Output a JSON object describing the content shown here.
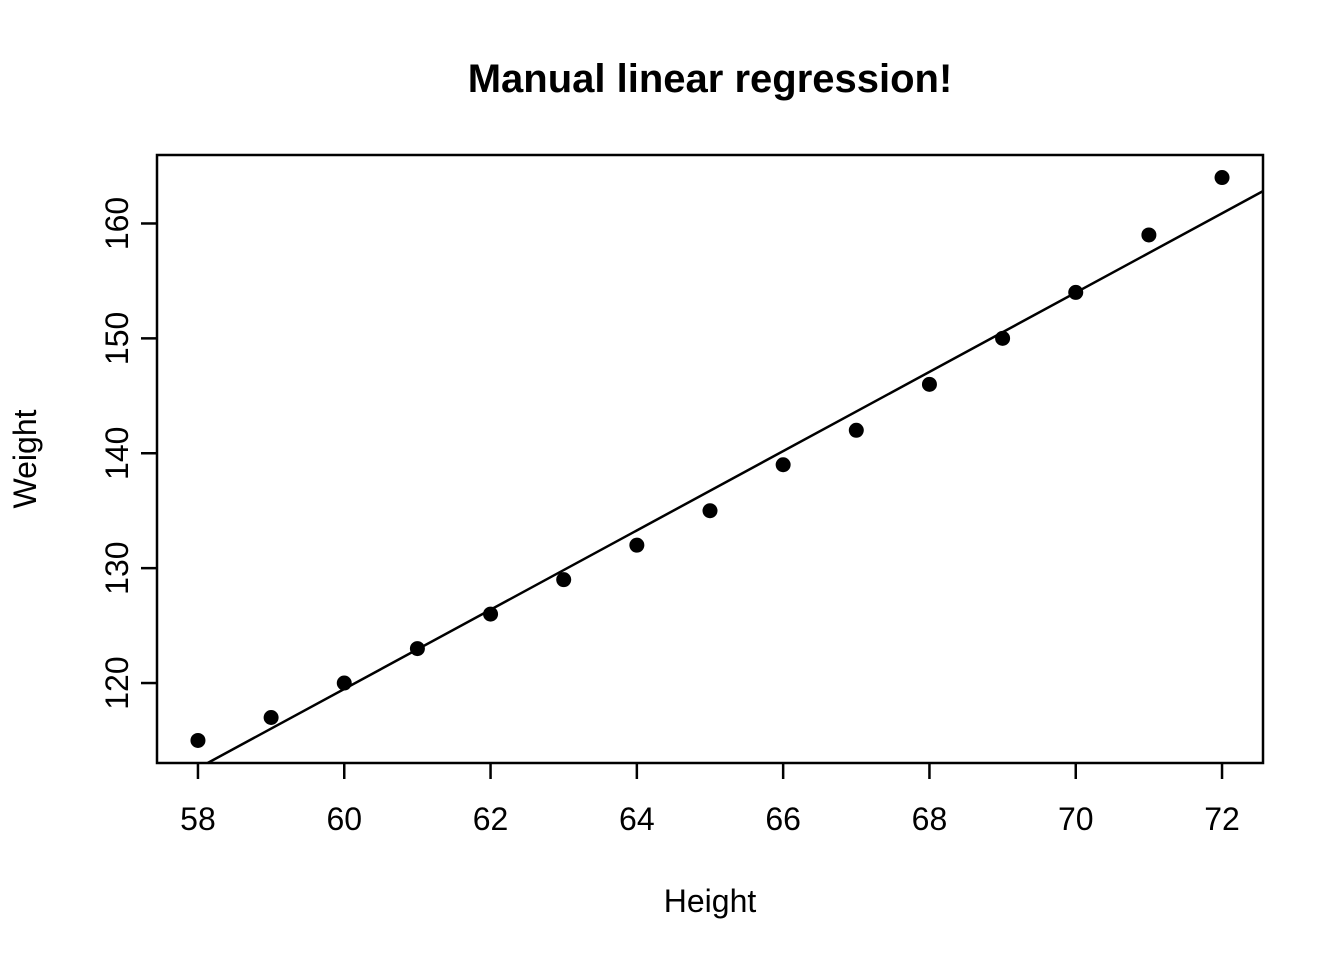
{
  "chart_data": {
    "type": "scatter",
    "title": "Manual linear regression!",
    "xlabel": "Height",
    "ylabel": "Weight",
    "x": [
      58,
      59,
      60,
      61,
      62,
      63,
      64,
      65,
      66,
      67,
      68,
      69,
      70,
      71,
      72
    ],
    "y": [
      115,
      117,
      120,
      123,
      126,
      129,
      132,
      135,
      139,
      142,
      146,
      150,
      154,
      159,
      164
    ],
    "regression_line": {
      "slope": 3.45,
      "intercept": -87.5167
    },
    "xlim": [
      57.44,
      72.56
    ],
    "ylim": [
      113.04,
      165.96
    ],
    "x_ticks": [
      58,
      60,
      62,
      64,
      66,
      68,
      70,
      72
    ],
    "y_ticks": [
      120,
      130,
      140,
      150,
      160
    ],
    "grid": false,
    "legend": null,
    "point_style": "filled-circle",
    "point_color": "#000000",
    "line_color": "#000000",
    "axis_color": "#000000",
    "background_color": "#ffffff"
  }
}
